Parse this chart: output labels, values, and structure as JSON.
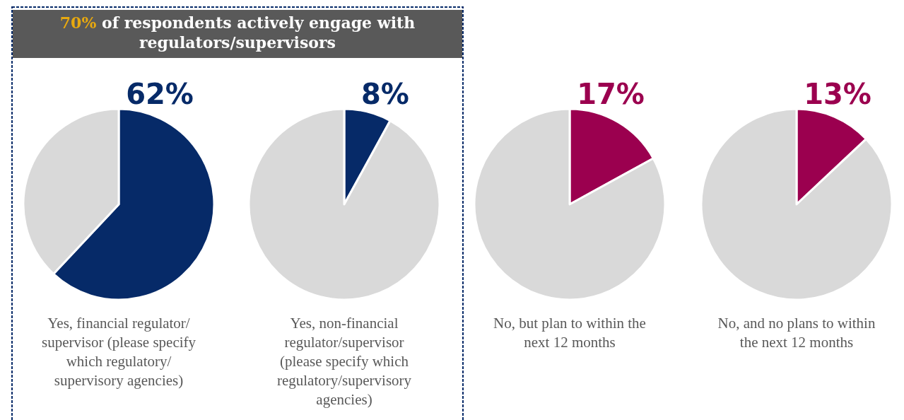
{
  "chart_data": [
    {
      "type": "pie",
      "title": "70% of respondents actively engage with regulators/supervisors",
      "xlabel": "Yes, financial regulator/ supervisor (please specify which regulatory/ supervisory agencies)",
      "categories": [
        null,
        null
      ],
      "values": [
        62,
        38
      ],
      "colors": [
        "#062a68",
        "#d9d9d9"
      ],
      "value_labels": [
        "62%",
        null
      ]
    },
    {
      "type": "pie",
      "xlabel": "Yes, non-financial regulator/supervisor (please specify which regulatory/supervisory agencies)",
      "categories": [
        null,
        null
      ],
      "values": [
        8,
        92
      ],
      "colors": [
        "#062a68",
        "#d9d9d9"
      ],
      "value_labels": [
        "8%",
        null
      ]
    },
    {
      "type": "pie",
      "xlabel": "No, but plan to within the next 12 months",
      "categories": [
        null,
        null
      ],
      "values": [
        17,
        83
      ],
      "colors": [
        "#9b004f",
        "#d9d9d9"
      ],
      "value_labels": [
        "17%",
        null
      ]
    },
    {
      "type": "pie",
      "xlabel": "No, and no plans to within the next 12 months",
      "categories": [
        null,
        null
      ],
      "values": [
        13,
        87
      ],
      "colors": [
        "#9b004f",
        "#d9d9d9"
      ],
      "value_labels": [
        "13%",
        null
      ]
    }
  ]
}
